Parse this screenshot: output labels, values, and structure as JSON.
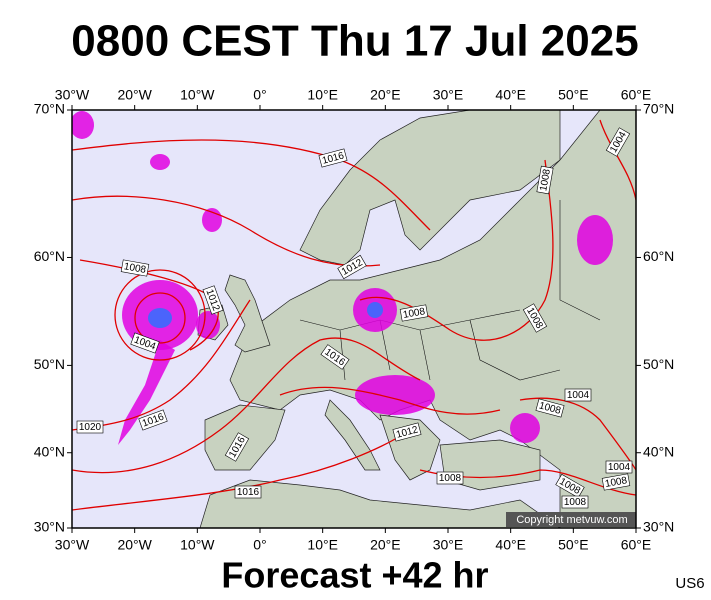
{
  "header": {
    "title": "0800 CEST Thu 17 Jul 2025"
  },
  "map": {
    "longitude_ticks": [
      {
        "value": -30,
        "label": "30°W"
      },
      {
        "value": -20,
        "label": "20°W"
      },
      {
        "value": -10,
        "label": "10°W"
      },
      {
        "value": 0,
        "label": "0°"
      },
      {
        "value": 10,
        "label": "10°E"
      },
      {
        "value": 20,
        "label": "20°E"
      },
      {
        "value": 30,
        "label": "30°E"
      },
      {
        "value": 40,
        "label": "40°E"
      },
      {
        "value": 50,
        "label": "50°E"
      },
      {
        "value": 60,
        "label": "60°E"
      }
    ],
    "latitude_ticks": [
      {
        "value": 70,
        "label": "70°N"
      },
      {
        "value": 60,
        "label": "60°N"
      },
      {
        "value": 50,
        "label": "50°N"
      },
      {
        "value": 40,
        "label": "40°N"
      },
      {
        "value": 30,
        "label": "30°N"
      }
    ],
    "isobar_labels": [
      "1016",
      "1008",
      "1004",
      "1008",
      "1012",
      "1012",
      "1008",
      "1008",
      "1004",
      "1016",
      "1004",
      "1008",
      "1016",
      "1020",
      "1016",
      "1012",
      "1008",
      "1016",
      "1004",
      "1008",
      "1008",
      "1008"
    ],
    "copyright": "Copyright metvuw.com"
  },
  "footer": {
    "forecast": "Forecast +42 hr",
    "model": "US6"
  }
}
